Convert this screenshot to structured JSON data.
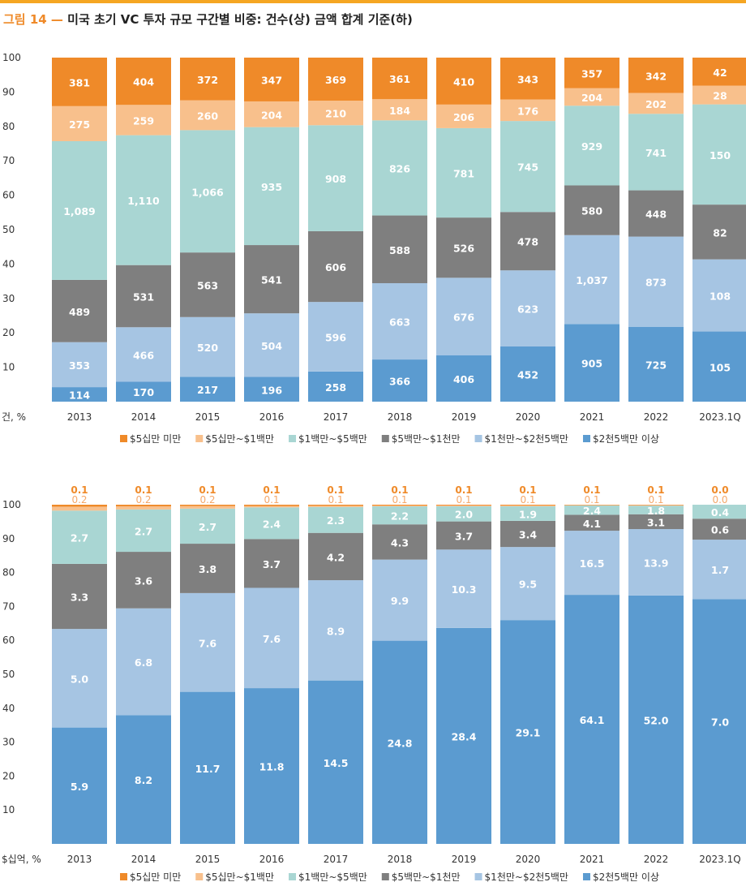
{
  "figure": {
    "number": "그림 14 —",
    "title": "미국 초기 VC 투자 규모 구간별 비중: 건수(상) 금액 합계 기준(하)"
  },
  "legend": [
    "$5십만 미만",
    "$5십만~$1백만",
    "$1백만~$5백만",
    "$5백만~$1천만",
    "$1천만~$2천5백만",
    "$2천5백만 이상"
  ],
  "colors": {
    "lt500k": "#ef8a29",
    "500k_1m": "#f8c08c",
    "1m_5m": "#a9d6d3",
    "5m_10m": "#7f7f7f",
    "10m_25m": "#a6c5e3",
    "gt25m": "#5b9bd0",
    "title_accent": "#ef8a29",
    "top_rule": "#f5a623"
  },
  "chart_data": [
    {
      "type": "bar",
      "stacked": "percent",
      "title": "건수(상)",
      "ylabel": "건, %",
      "ylim": [
        0,
        100
      ],
      "yticks": [
        10,
        20,
        30,
        40,
        50,
        60,
        70,
        80,
        90,
        100
      ],
      "categories": [
        "2013",
        "2014",
        "2015",
        "2016",
        "2017",
        "2018",
        "2019",
        "2020",
        "2021",
        "2022",
        "2023.1Q"
      ],
      "series": [
        {
          "name": "$2천5백만 이상",
          "color": "#5b9bd0",
          "values": [
            114,
            170,
            217,
            196,
            258,
            366,
            406,
            452,
            905,
            725,
            105
          ],
          "labels": [
            "114",
            "170",
            "217",
            "196",
            "258",
            "366",
            "406",
            "452",
            "905",
            "725",
            "105"
          ]
        },
        {
          "name": "$1천만~$2천5백만",
          "color": "#a6c5e3",
          "values": [
            353,
            466,
            520,
            504,
            596,
            663,
            676,
            623,
            1037,
            873,
            108
          ],
          "labels": [
            "353",
            "466",
            "520",
            "504",
            "596",
            "663",
            "676",
            "623",
            "1,037",
            "873",
            "108"
          ]
        },
        {
          "name": "$5백만~$1천만",
          "color": "#7f7f7f",
          "values": [
            489,
            531,
            563,
            541,
            606,
            588,
            526,
            478,
            580,
            448,
            82
          ],
          "labels": [
            "489",
            "531",
            "563",
            "541",
            "606",
            "588",
            "526",
            "478",
            "580",
            "448",
            "82"
          ]
        },
        {
          "name": "$1백만~$5백만",
          "color": "#a9d6d3",
          "values": [
            1089,
            1110,
            1066,
            935,
            908,
            826,
            781,
            745,
            929,
            741,
            150
          ],
          "labels": [
            "1,089",
            "1,110",
            "1,066",
            "935",
            "908",
            "826",
            "781",
            "745",
            "929",
            "741",
            "150"
          ]
        },
        {
          "name": "$5십만~$1백만",
          "color": "#f8c08c",
          "values": [
            275,
            259,
            260,
            204,
            210,
            184,
            206,
            176,
            204,
            202,
            28
          ],
          "labels": [
            "275",
            "259",
            "260",
            "204",
            "210",
            "184",
            "206",
            "176",
            "204",
            "202",
            "28"
          ]
        },
        {
          "name": "$5십만 미만",
          "color": "#ef8a29",
          "values": [
            381,
            404,
            372,
            347,
            369,
            361,
            410,
            343,
            357,
            342,
            42
          ],
          "labels": [
            "381",
            "404",
            "372",
            "347",
            "369",
            "361",
            "410",
            "343",
            "357",
            "342",
            "42"
          ]
        }
      ],
      "legend_position": "bottom"
    },
    {
      "type": "bar",
      "stacked": "percent",
      "title": "금액 합계 기준(하)",
      "ylabel": "$십억, %",
      "ylim": [
        0,
        100
      ],
      "yticks": [
        10,
        20,
        30,
        40,
        50,
        60,
        70,
        80,
        90,
        100
      ],
      "categories": [
        "2013",
        "2014",
        "2015",
        "2016",
        "2017",
        "2018",
        "2019",
        "2020",
        "2021",
        "2022",
        "2023.1Q"
      ],
      "series": [
        {
          "name": "$2천5백만 이상",
          "color": "#5b9bd0",
          "values": [
            5.9,
            8.2,
            11.7,
            11.8,
            14.5,
            24.8,
            28.4,
            29.1,
            64.1,
            52.0,
            7.0
          ],
          "labels": [
            "5.9",
            "8.2",
            "11.7",
            "11.8",
            "14.5",
            "24.8",
            "28.4",
            "29.1",
            "64.1",
            "52.0",
            "7.0"
          ]
        },
        {
          "name": "$1천만~$2천5백만",
          "color": "#a6c5e3",
          "values": [
            5.0,
            6.8,
            7.6,
            7.6,
            8.9,
            9.9,
            10.3,
            9.5,
            16.5,
            13.9,
            1.7
          ],
          "labels": [
            "5.0",
            "6.8",
            "7.6",
            "7.6",
            "8.9",
            "9.9",
            "10.3",
            "9.5",
            "16.5",
            "13.9",
            "1.7"
          ]
        },
        {
          "name": "$5백만~$1천만",
          "color": "#7f7f7f",
          "values": [
            3.3,
            3.6,
            3.8,
            3.7,
            4.2,
            4.3,
            3.7,
            3.4,
            4.1,
            3.1,
            0.6
          ],
          "labels": [
            "3.3",
            "3.6",
            "3.8",
            "3.7",
            "4.2",
            "4.3",
            "3.7",
            "3.4",
            "4.1",
            "3.1",
            "0.6"
          ]
        },
        {
          "name": "$1백만~$5백만",
          "color": "#a9d6d3",
          "values": [
            2.7,
            2.7,
            2.7,
            2.4,
            2.3,
            2.2,
            2.0,
            1.9,
            2.4,
            1.8,
            0.4
          ],
          "labels": [
            "2.7",
            "2.7",
            "2.7",
            "2.4",
            "2.3",
            "2.2",
            "2.0",
            "1.9",
            "2.4",
            "1.8",
            "0.4"
          ]
        },
        {
          "name": "$5십만~$1백만",
          "color": "#f8c08c",
          "values": [
            0.2,
            0.2,
            0.2,
            0.1,
            0.1,
            0.1,
            0.1,
            0.1,
            0.1,
            0.1,
            0.0
          ],
          "labels": [
            "0.2",
            "0.2",
            "0.2",
            "0.1",
            "0.1",
            "0.1",
            "0.1",
            "0.1",
            "0.1",
            "0.1",
            "0.0"
          ]
        },
        {
          "name": "$5십만 미만",
          "color": "#ef8a29",
          "values": [
            0.1,
            0.1,
            0.1,
            0.1,
            0.1,
            0.1,
            0.1,
            0.1,
            0.1,
            0.1,
            0.0
          ],
          "labels": [
            "0.1",
            "0.1",
            "0.1",
            "0.1",
            "0.1",
            "0.1",
            "0.1",
            "0.1",
            "0.1",
            "0.1",
            "0.0"
          ]
        }
      ],
      "legend_position": "bottom"
    }
  ]
}
